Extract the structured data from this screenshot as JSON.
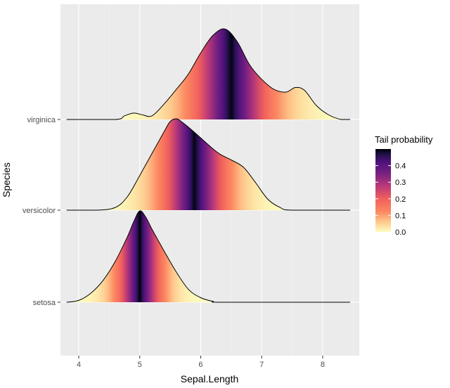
{
  "chart_data": {
    "type": "ridgeline",
    "fill_variable": "Tail probability",
    "xlabel": "Sepal.Length",
    "ylabel": "Species",
    "xlim": [
      3.7,
      8.6
    ],
    "x_ticks": [
      "4",
      "5",
      "6",
      "7",
      "8"
    ],
    "x_tick_values": [
      4,
      5,
      6,
      7,
      8
    ],
    "categories": [
      "setosa",
      "versicolor",
      "virginica"
    ],
    "series": [
      {
        "name": "setosa",
        "x_range": [
          3.8,
          8.45
        ],
        "median": 5.0,
        "density_x": [
          3.8,
          4.0,
          4.2,
          4.4,
          4.6,
          4.8,
          4.9,
          5.0,
          5.1,
          5.2,
          5.4,
          5.6,
          5.8,
          6.0,
          6.2,
          6.4,
          8.45
        ],
        "density_height": [
          0.0,
          0.02,
          0.1,
          0.24,
          0.45,
          0.72,
          0.88,
          1.0,
          0.93,
          0.8,
          0.56,
          0.33,
          0.14,
          0.05,
          0.01,
          0.0,
          0.0
        ]
      },
      {
        "name": "versicolor",
        "x_range": [
          3.8,
          8.45
        ],
        "median": 5.9,
        "density_x": [
          3.8,
          4.3,
          4.6,
          4.8,
          5.0,
          5.2,
          5.4,
          5.5,
          5.6,
          5.7,
          5.9,
          6.1,
          6.3,
          6.5,
          6.7,
          6.9,
          7.1,
          7.3,
          7.5,
          8.45
        ],
        "density_height": [
          0.0,
          0.0,
          0.03,
          0.15,
          0.38,
          0.62,
          0.86,
          0.97,
          1.0,
          0.96,
          0.85,
          0.73,
          0.62,
          0.55,
          0.47,
          0.3,
          0.12,
          0.03,
          0.0,
          0.0
        ]
      },
      {
        "name": "virginica",
        "x_range": [
          3.8,
          8.45
        ],
        "median": 6.5,
        "density_x": [
          3.8,
          4.6,
          4.75,
          4.9,
          5.05,
          5.2,
          5.4,
          5.6,
          5.8,
          6.0,
          6.2,
          6.4,
          6.6,
          6.8,
          7.0,
          7.2,
          7.4,
          7.55,
          7.7,
          7.9,
          8.1,
          8.3,
          8.45
        ],
        "density_height": [
          0.0,
          0.0,
          0.04,
          0.07,
          0.05,
          0.04,
          0.17,
          0.33,
          0.5,
          0.73,
          0.92,
          0.99,
          0.85,
          0.6,
          0.44,
          0.33,
          0.3,
          0.35,
          0.32,
          0.15,
          0.05,
          0.0,
          0.0
        ]
      }
    ],
    "legend": {
      "title": "Tail probability",
      "labels": [
        "0.4",
        "0.3",
        "0.2",
        "0.1",
        "0.0"
      ],
      "values": [
        0.4,
        0.3,
        0.2,
        0.1,
        0.0
      ],
      "range": [
        0.0,
        0.5
      ],
      "position": "right"
    },
    "colors": {
      "panel_background": "#ebebeb",
      "grid_major": "#ffffff",
      "grid_minor": "#f3f3f3",
      "outline": "#000000",
      "scale_low": "#fcfdbf",
      "scale_mid_high": "#fc8961",
      "scale_mid": "#b73779",
      "scale_mid_low": "#51127c",
      "scale_high": "#000004"
    }
  }
}
